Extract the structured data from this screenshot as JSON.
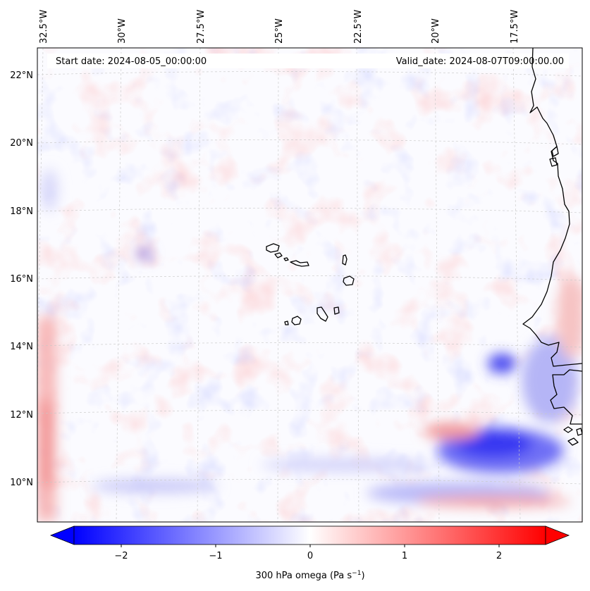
{
  "map": {
    "start_date": "Start date: 2024-08-05_00:00:00",
    "valid_date": "Valid_date: 2024-08-07T09:00:00.00",
    "lon_labels": [
      "32.5°W",
      "30°W",
      "27.5°W",
      "25°W",
      "22.5°W",
      "20°W",
      "17.5°W"
    ],
    "lat_labels": [
      "22°N",
      "20°N",
      "18°N",
      "16°N",
      "14°N",
      "12°N",
      "10°N"
    ],
    "projection": "lambert-conformal",
    "gridlines": true
  },
  "colorbar": {
    "label_prefix": "300 hPa omega (Pa s",
    "label_sup": "−1",
    "label_suffix": ")",
    "ticks": [
      "−2",
      "−1",
      "0",
      "1",
      "2"
    ],
    "range": [
      -2.5,
      2.5
    ],
    "extend": "both",
    "cmap": "bwr",
    "negative_color": "#0000ff",
    "neutral_color": "#ffffff",
    "positive_color": "#ff0000"
  }
}
